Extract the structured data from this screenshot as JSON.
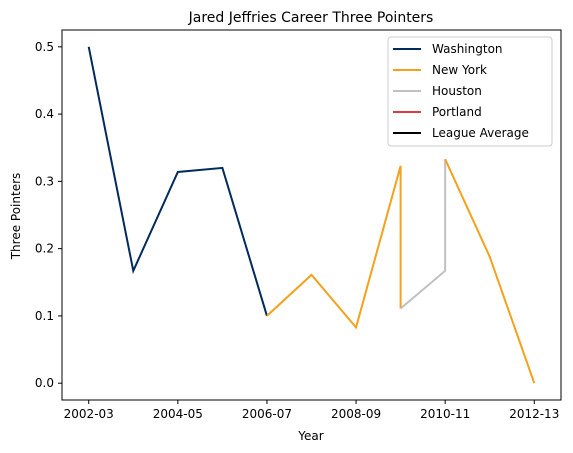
{
  "chart_data": {
    "type": "line",
    "title": "Jared Jeffries Career Three Pointers",
    "xlabel": "Year",
    "ylabel": "Three Pointers",
    "x_ticks": [
      "2002-03",
      "2004-05",
      "2006-07",
      "2008-09",
      "2010-11",
      "2012-13"
    ],
    "y_ticks": [
      "0.0",
      "0.1",
      "0.2",
      "0.3",
      "0.4",
      "0.5"
    ],
    "x_tick_positions": [
      0,
      2,
      4,
      6,
      8,
      10
    ],
    "y_tick_values": [
      0.0,
      0.1,
      0.2,
      0.3,
      0.4,
      0.5
    ],
    "xlim": [
      -0.6,
      10.6
    ],
    "ylim": [
      -0.025,
      0.525
    ],
    "grid": false,
    "legend_position": "top-right",
    "series": [
      {
        "name": "Washington",
        "color": "#002b5c",
        "x": [
          0,
          1,
          2,
          3,
          4
        ],
        "y": [
          0.5,
          0.167,
          0.314,
          0.32,
          0.1
        ]
      },
      {
        "name": "New York",
        "color": "#f5a11c",
        "x": [
          4,
          5,
          6,
          7,
          7
        ],
        "y": [
          0.1,
          0.161,
          0.083,
          0.323,
          0.111
        ]
      },
      {
        "name": "Houston",
        "color": "#c0c0c0",
        "x": [
          7,
          8,
          8
        ],
        "y": [
          0.111,
          0.167,
          0.333
        ]
      },
      {
        "name": "New York",
        "color": "#f5a11c",
        "x": [
          8,
          9,
          10
        ],
        "y": [
          0.333,
          0.188,
          0.0
        ]
      }
    ],
    "legend": [
      {
        "name": "Washington",
        "color": "#002b5c"
      },
      {
        "name": "New York",
        "color": "#f5a11c"
      },
      {
        "name": "Houston",
        "color": "#c0c0c0"
      },
      {
        "name": "Portland",
        "color": "#e03a3e"
      },
      {
        "name": "League Average",
        "color": "#000000"
      }
    ]
  }
}
